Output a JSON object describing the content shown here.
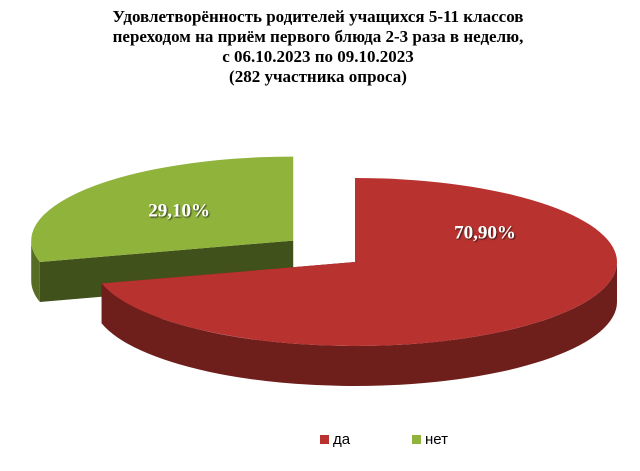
{
  "chart_data": {
    "type": "pie3d",
    "title": [
      "Удовлетворённость родителей учащихся 5-11 классов",
      "переходом на приём первого блюда 2-3 раза в неделю,",
      "с 06.10.2023 по 09.10.2023",
      "(282 участника опроса)"
    ],
    "categories": [
      "да",
      "нет"
    ],
    "values": [
      70.9,
      29.1
    ],
    "value_labels": [
      "70,90%",
      "29,10%"
    ],
    "colors": [
      "#b8332f",
      "#8fb33b"
    ],
    "exploded": [
      false,
      true
    ]
  }
}
